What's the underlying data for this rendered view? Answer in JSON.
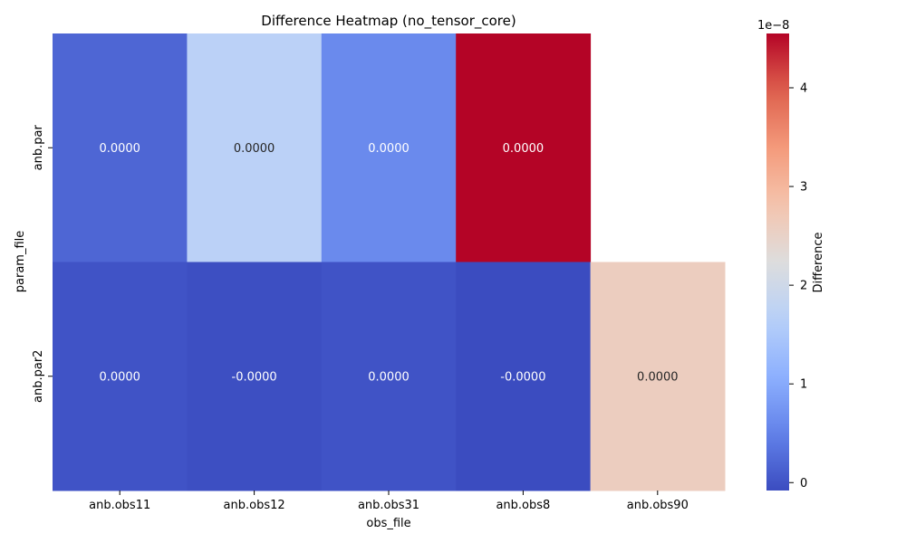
{
  "chart_data": {
    "type": "heatmap",
    "title": "Difference Heatmap (no_tensor_core)",
    "xlabel": "obs_file",
    "ylabel": "param_file",
    "x_categories": [
      "anb.obs11",
      "anb.obs12",
      "anb.obs31",
      "anb.obs8",
      "anb.obs90"
    ],
    "y_categories": [
      "anb.par",
      "anb.par2"
    ],
    "values": [
      [
        2e-09,
        1.7e-08,
        6e-09,
        4.55e-08,
        null
      ],
      [
        0.0,
        -5e-10,
        0.0,
        -8e-10,
        2.6e-08
      ]
    ],
    "cell_labels": [
      [
        "0.0000",
        "0.0000",
        "0.0000",
        "0.0000",
        ""
      ],
      [
        "0.0000",
        "-0.0000",
        "0.0000",
        "-0.0000",
        "0.0000"
      ]
    ],
    "colormap": "coolwarm",
    "vmin": -8e-10,
    "vmax": 4.55e-08,
    "colorbar": {
      "label": "Difference",
      "scale_label": "1e−8",
      "ticks": [
        0,
        1,
        2,
        3,
        4
      ],
      "tick_multiplier": 1e-08
    },
    "grid": false
  }
}
